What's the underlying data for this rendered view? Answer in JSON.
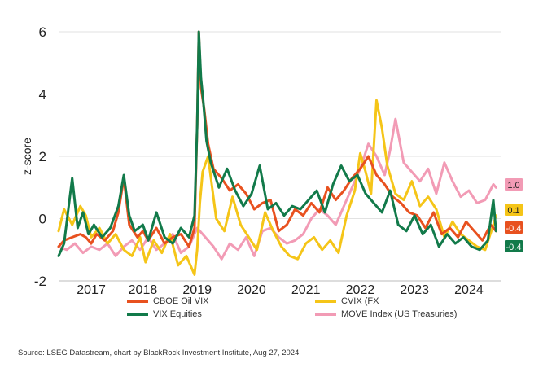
{
  "chart_data": {
    "type": "line",
    "ylabel": "z-score",
    "ylim": [
      -2,
      6
    ],
    "yticks": [
      6,
      4,
      2,
      0,
      -2
    ],
    "xlim": [
      2016.5,
      2024.65
    ],
    "xticks": [
      {
        "label": "2017",
        "value": 2017.1
      },
      {
        "label": "2018",
        "value": 2018.05
      },
      {
        "label": "2019",
        "value": 2019.05
      },
      {
        "label": "2020",
        "value": 2020.05
      },
      {
        "label": "2021",
        "value": 2021.05
      },
      {
        "label": "2022",
        "value": 2022.05
      },
      {
        "label": "2023",
        "value": 2023.05
      },
      {
        "label": "2024",
        "value": 2024.05
      }
    ],
    "grid": "horizontal",
    "legend_placement": "bottom",
    "series": [
      {
        "name": "CBOE Oil VIX",
        "color": "#e8511f",
        "end_label": "-0.4",
        "end_value": -0.4,
        "x": [
          2016.5,
          2016.6,
          2016.75,
          2016.9,
          2017.0,
          2017.1,
          2017.2,
          2017.35,
          2017.5,
          2017.6,
          2017.7,
          2017.8,
          2017.95,
          2018.05,
          2018.15,
          2018.3,
          2018.45,
          2018.6,
          2018.75,
          2018.9,
          2019.0,
          2019.05,
          2019.08,
          2019.12,
          2019.18,
          2019.25,
          2019.35,
          2019.5,
          2019.65,
          2019.8,
          2019.95,
          2020.1,
          2020.25,
          2020.4,
          2020.55,
          2020.7,
          2020.85,
          2021.0,
          2021.15,
          2021.3,
          2021.45,
          2021.6,
          2021.75,
          2021.9,
          2022.05,
          2022.2,
          2022.35,
          2022.5,
          2022.65,
          2022.8,
          2022.95,
          2023.1,
          2023.25,
          2023.4,
          2023.55,
          2023.7,
          2023.85,
          2024.0,
          2024.15,
          2024.3,
          2024.45,
          2024.55
        ],
        "y": [
          -0.9,
          -0.7,
          -0.6,
          -0.5,
          -0.6,
          -0.8,
          -0.5,
          -0.7,
          -0.4,
          0.2,
          1.3,
          -0.2,
          -0.6,
          -0.4,
          -0.7,
          -0.3,
          -0.8,
          -0.6,
          -0.5,
          -0.9,
          -0.3,
          3.0,
          6.0,
          4.2,
          3.5,
          2.4,
          1.6,
          1.3,
          0.9,
          1.1,
          0.8,
          0.3,
          0.5,
          0.6,
          -0.4,
          -0.2,
          0.3,
          0.1,
          0.5,
          0.2,
          1.0,
          0.6,
          0.9,
          1.3,
          1.6,
          2.0,
          1.4,
          1.1,
          0.7,
          0.5,
          0.2,
          0.1,
          -0.3,
          0.2,
          -0.5,
          -0.3,
          -0.6,
          -0.1,
          -0.4,
          -0.7,
          -0.2,
          -0.4
        ]
      },
      {
        "name": "CVIX (FX",
        "color": "#f5c518",
        "end_label": "0.1",
        "end_value": 0.1,
        "x": [
          2016.5,
          2016.6,
          2016.75,
          2016.9,
          2017.0,
          2017.1,
          2017.25,
          2017.4,
          2017.55,
          2017.7,
          2017.85,
          2018.0,
          2018.1,
          2018.25,
          2018.4,
          2018.55,
          2018.7,
          2018.85,
          2019.0,
          2019.05,
          2019.1,
          2019.15,
          2019.25,
          2019.4,
          2019.55,
          2019.7,
          2019.85,
          2020.0,
          2020.15,
          2020.3,
          2020.45,
          2020.6,
          2020.75,
          2020.9,
          2021.05,
          2021.2,
          2021.35,
          2021.5,
          2021.65,
          2021.8,
          2021.95,
          2022.05,
          2022.15,
          2022.25,
          2022.35,
          2022.45,
          2022.55,
          2022.7,
          2022.85,
          2023.0,
          2023.15,
          2023.3,
          2023.45,
          2023.6,
          2023.75,
          2023.9,
          2024.05,
          2024.2,
          2024.35,
          2024.5,
          2024.55
        ],
        "y": [
          -0.4,
          0.3,
          -0.2,
          0.4,
          0.1,
          -0.6,
          -0.3,
          -0.8,
          -0.5,
          -1.0,
          -1.2,
          -0.6,
          -1.4,
          -0.7,
          -1.1,
          -0.5,
          -1.5,
          -1.2,
          -1.8,
          -1.0,
          0.5,
          1.5,
          2.0,
          0.0,
          -0.4,
          0.7,
          -0.2,
          -0.6,
          -1.0,
          0.2,
          -0.4,
          -0.9,
          -1.2,
          -1.3,
          -0.8,
          -0.6,
          -1.0,
          -0.7,
          -1.1,
          0.1,
          0.9,
          2.1,
          1.5,
          0.8,
          3.8,
          2.9,
          1.7,
          0.8,
          0.6,
          1.2,
          0.4,
          0.7,
          0.3,
          -0.6,
          -0.1,
          -0.5,
          -0.7,
          -0.9,
          -1.0,
          -0.2,
          0.1
        ]
      },
      {
        "name": "VIX Equities",
        "color": "#127a4a",
        "end_label": "-0.4",
        "end_value": -0.4,
        "x": [
          2016.5,
          2016.6,
          2016.75,
          2016.85,
          2016.95,
          2017.05,
          2017.15,
          2017.3,
          2017.45,
          2017.6,
          2017.7,
          2017.8,
          2017.9,
          2018.05,
          2018.15,
          2018.3,
          2018.45,
          2018.6,
          2018.75,
          2018.9,
          2019.0,
          2019.05,
          2019.08,
          2019.12,
          2019.16,
          2019.22,
          2019.3,
          2019.45,
          2019.6,
          2019.75,
          2019.9,
          2020.05,
          2020.2,
          2020.35,
          2020.5,
          2020.65,
          2020.8,
          2020.95,
          2021.1,
          2021.25,
          2021.4,
          2021.55,
          2021.7,
          2021.85,
          2022.0,
          2022.15,
          2022.3,
          2022.45,
          2022.6,
          2022.75,
          2022.9,
          2023.05,
          2023.2,
          2023.35,
          2023.5,
          2023.65,
          2023.8,
          2023.95,
          2024.1,
          2024.25,
          2024.4,
          2024.5,
          2024.55
        ],
        "y": [
          -1.2,
          -0.8,
          1.3,
          -0.3,
          0.2,
          -0.5,
          -0.2,
          -0.6,
          -0.3,
          0.4,
          1.4,
          0.1,
          -0.4,
          -0.2,
          -0.7,
          0.2,
          -0.6,
          -0.8,
          -0.3,
          -0.6,
          0.1,
          3.0,
          6.0,
          4.5,
          3.8,
          2.5,
          1.8,
          1.0,
          1.6,
          0.9,
          0.4,
          0.8,
          1.7,
          0.3,
          0.5,
          0.1,
          0.4,
          0.3,
          0.6,
          0.9,
          0.2,
          1.1,
          1.7,
          1.2,
          1.4,
          0.8,
          0.5,
          0.2,
          0.9,
          -0.2,
          -0.4,
          0.1,
          -0.5,
          -0.2,
          -0.9,
          -0.5,
          -0.8,
          -0.6,
          -0.9,
          -1.0,
          -0.7,
          0.6,
          -0.4
        ]
      },
      {
        "name": "MOVE Index (US Treasuries)",
        "color": "#f29bb5",
        "end_label": "1.0",
        "end_value": 1.0,
        "x": [
          2016.5,
          2016.65,
          2016.8,
          2016.95,
          2017.1,
          2017.25,
          2017.4,
          2017.55,
          2017.7,
          2017.85,
          2018.0,
          2018.15,
          2018.3,
          2018.45,
          2018.6,
          2018.75,
          2018.9,
          2019.05,
          2019.2,
          2019.35,
          2019.5,
          2019.65,
          2019.8,
          2019.95,
          2020.1,
          2020.25,
          2020.4,
          2020.55,
          2020.7,
          2020.85,
          2021.0,
          2021.15,
          2021.3,
          2021.45,
          2021.6,
          2021.75,
          2021.9,
          2022.05,
          2022.2,
          2022.35,
          2022.5,
          2022.6,
          2022.7,
          2022.85,
          2023.0,
          2023.15,
          2023.3,
          2023.45,
          2023.6,
          2023.75,
          2023.9,
          2024.05,
          2024.2,
          2024.35,
          2024.5,
          2024.55
        ],
        "y": [
          -0.9,
          -1.0,
          -0.8,
          -1.1,
          -0.9,
          -1.0,
          -0.8,
          -1.2,
          -0.9,
          -0.7,
          -1.0,
          -0.6,
          -1.0,
          -0.8,
          -0.5,
          -1.1,
          -0.9,
          -0.3,
          -0.6,
          -0.9,
          -1.3,
          -0.8,
          -1.0,
          -0.6,
          -1.2,
          -0.4,
          -0.3,
          -0.6,
          -0.8,
          -0.7,
          -0.5,
          0.0,
          0.3,
          0.1,
          -0.2,
          0.4,
          1.0,
          1.6,
          2.4,
          2.0,
          1.4,
          2.2,
          3.2,
          1.8,
          1.5,
          1.2,
          1.6,
          0.8,
          1.8,
          1.2,
          0.7,
          0.9,
          0.5,
          0.6,
          1.1,
          1.0
        ]
      }
    ]
  },
  "source_text": "Source: LSEG Datastream, chart by BlackRock Investment Institute, Aug 27, 2024"
}
